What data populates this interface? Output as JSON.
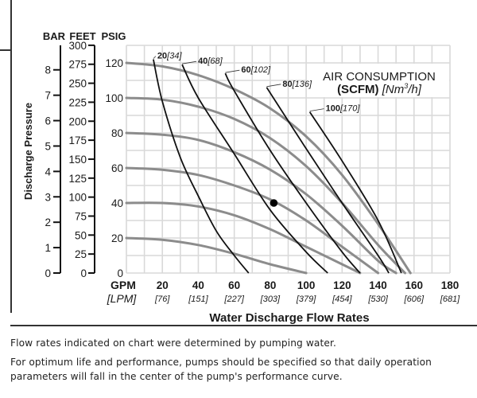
{
  "chart_data": {
    "type": "line",
    "title": "Air Consumption (SCFM) [Nm3/h]",
    "legend": {
      "line1": "AIR CONSUMPTION",
      "line2_bold": "(SCFM)",
      "line2_italic_prefix": "[Nm",
      "line2_sup": "3",
      "line2_italic_suffix": "/h]",
      "placement": "top-right"
    },
    "xlabel": "Water Discharge Flow Rates",
    "ylabel": "Discharge Pressure",
    "x_unit_primary": "GPM",
    "x_unit_secondary": "[LPM]",
    "xlim": [
      0,
      180
    ],
    "ylim": [
      0,
      130
    ],
    "grid": true,
    "x_ticks": [
      {
        "gpm": "20",
        "lpm": "[76]",
        "value": 20
      },
      {
        "gpm": "40",
        "lpm": "[151]",
        "value": 40
      },
      {
        "gpm": "60",
        "lpm": "[227]",
        "value": 60
      },
      {
        "gpm": "80",
        "lpm": "[303]",
        "value": 80
      },
      {
        "gpm": "100",
        "lpm": "[379]",
        "value": 100
      },
      {
        "gpm": "120",
        "lpm": "[454]",
        "value": 120
      },
      {
        "gpm": "140",
        "lpm": "[530]",
        "value": 140
      },
      {
        "gpm": "160",
        "lpm": "[606]",
        "value": 160
      },
      {
        "gpm": "180",
        "lpm": "[681]",
        "value": 180
      }
    ],
    "y_axes": {
      "bar": {
        "header": "BAR",
        "ticks": [
          "0",
          "1",
          "2",
          "3",
          "4",
          "5",
          "6",
          "7",
          "8"
        ],
        "psi_per_unit": 14.5038
      },
      "feet": {
        "header": "FEET",
        "ticks": [
          "0",
          "25",
          "50",
          "75",
          "100",
          "125",
          "150",
          "175",
          "200",
          "225",
          "250",
          "275",
          "300"
        ],
        "psi_per_unit": 0.4335
      },
      "psig": {
        "header": "PSIG",
        "ticks": [
          "0",
          "20",
          "40",
          "60",
          "80",
          "100",
          "120"
        ]
      }
    },
    "pressure_curves": [
      {
        "name": "120 psig air",
        "points": [
          [
            0,
            120
          ],
          [
            20,
            118
          ],
          [
            40,
            113
          ],
          [
            60,
            105
          ],
          [
            80,
            94
          ],
          [
            100,
            78
          ],
          [
            120,
            56
          ],
          [
            140,
            28
          ],
          [
            158,
            0
          ]
        ]
      },
      {
        "name": "100 psig air",
        "points": [
          [
            0,
            100
          ],
          [
            20,
            99
          ],
          [
            40,
            95
          ],
          [
            60,
            88
          ],
          [
            80,
            77
          ],
          [
            100,
            61
          ],
          [
            120,
            40
          ],
          [
            140,
            16
          ],
          [
            155,
            0
          ]
        ]
      },
      {
        "name": "80 psig air",
        "points": [
          [
            0,
            80
          ],
          [
            20,
            79
          ],
          [
            40,
            76
          ],
          [
            60,
            69
          ],
          [
            80,
            59
          ],
          [
            100,
            45
          ],
          [
            120,
            27
          ],
          [
            140,
            7
          ],
          [
            150,
            0
          ]
        ]
      },
      {
        "name": "60 psig air",
        "points": [
          [
            0,
            60
          ],
          [
            20,
            59
          ],
          [
            40,
            56
          ],
          [
            60,
            50
          ],
          [
            80,
            42
          ],
          [
            100,
            30
          ],
          [
            120,
            15
          ],
          [
            140,
            0
          ]
        ]
      },
      {
        "name": "40 psig air",
        "points": [
          [
            0,
            40
          ],
          [
            20,
            40
          ],
          [
            40,
            38
          ],
          [
            60,
            33
          ],
          [
            80,
            25
          ],
          [
            100,
            15
          ],
          [
            120,
            5
          ],
          [
            130,
            0
          ]
        ]
      },
      {
        "name": "20 psig air",
        "points": [
          [
            0,
            20
          ],
          [
            20,
            19
          ],
          [
            40,
            16
          ],
          [
            60,
            11
          ],
          [
            80,
            5
          ],
          [
            100,
            0
          ]
        ]
      }
    ],
    "air_consumption_curves": [
      {
        "scfm": "20",
        "nm3h": "[34]",
        "points": [
          [
            15,
            122
          ],
          [
            20,
            98
          ],
          [
            30,
            66
          ],
          [
            40,
            44
          ],
          [
            50,
            24
          ],
          [
            60,
            10
          ],
          [
            68,
            0
          ]
        ]
      },
      {
        "scfm": "40",
        "nm3h": "[68]",
        "points": [
          [
            31,
            119
          ],
          [
            40,
            100
          ],
          [
            60,
            68
          ],
          [
            80,
            36
          ],
          [
            100,
            12
          ],
          [
            112,
            0
          ]
        ]
      },
      {
        "scfm": "60",
        "nm3h": "[102]",
        "points": [
          [
            55,
            114
          ],
          [
            60,
            104
          ],
          [
            80,
            70
          ],
          [
            100,
            40
          ],
          [
            120,
            12
          ],
          [
            130,
            0
          ]
        ]
      },
      {
        "scfm": "80",
        "nm3h": "[136]",
        "points": [
          [
            78,
            106
          ],
          [
            100,
            71
          ],
          [
            120,
            40
          ],
          [
            140,
            10
          ],
          [
            146,
            0
          ]
        ]
      },
      {
        "scfm": "100",
        "nm3h": "[170]",
        "points": [
          [
            102,
            92
          ],
          [
            120,
            64
          ],
          [
            140,
            30
          ],
          [
            153,
            0
          ]
        ]
      }
    ],
    "operating_point": {
      "gpm": 82,
      "psig": 40
    }
  },
  "notes": {
    "line1": "Flow rates indicated on chart were determined by pumping water.",
    "line2": "For optimum life and performance, pumps should be specified so that daily operation parameters will fall in the center of the pump's performance curve."
  },
  "colors": {
    "grid": "#d9d9d9",
    "pressure_curve": "#8c8c8c",
    "air_curve": "#111111",
    "text": "#1a1a1a"
  }
}
